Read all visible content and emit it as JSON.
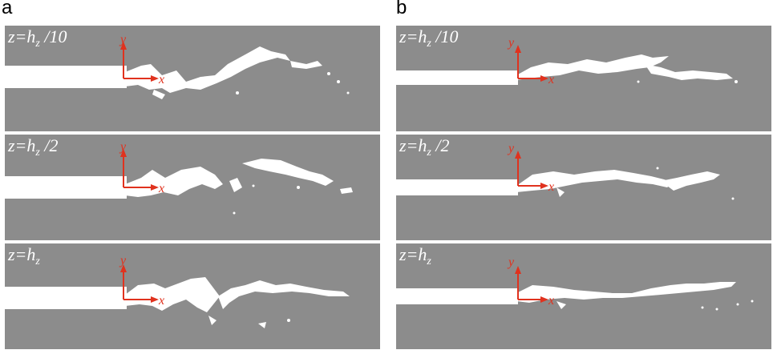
{
  "figure": {
    "labels": [
      "a",
      "b"
    ]
  },
  "axes": {
    "x": "x",
    "y": "y"
  },
  "panels": [
    {
      "column": "a",
      "z_main": "z=h",
      "z_sub": "z",
      "z_tail": " /10"
    },
    {
      "column": "a",
      "z_main": "z=h",
      "z_sub": "z",
      "z_tail": " /2"
    },
    {
      "column": "a",
      "z_main": "z=h",
      "z_sub": "z",
      "z_tail": ""
    },
    {
      "column": "b",
      "z_main": "z=h",
      "z_sub": "z",
      "z_tail": " /10"
    },
    {
      "column": "b",
      "z_main": "z=h",
      "z_sub": "z",
      "z_tail": " /2"
    },
    {
      "column": "b",
      "z_main": "z=h",
      "z_sub": "z",
      "z_tail": ""
    }
  ],
  "colors": {
    "background": "#8c8c8c",
    "crack": "#ffffff",
    "axis": "#e0321e"
  }
}
